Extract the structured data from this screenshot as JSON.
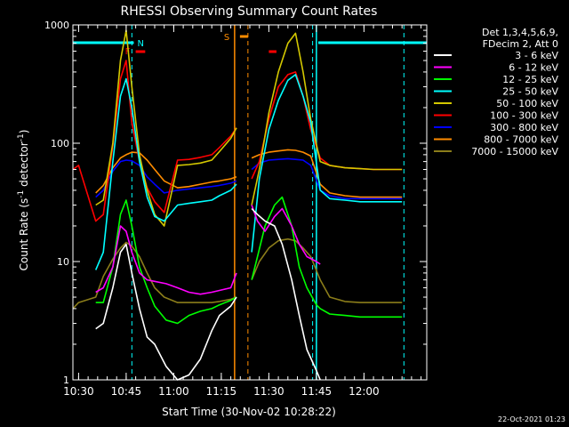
{
  "chart_data": {
    "type": "line",
    "title": "RHESSI Observing Summary Count Rates",
    "xlabel": "Start Time (30-Nov-02 10:28:22)",
    "ylabel_main": "Count Rate (s",
    "ylabel_sup1": "-1",
    "ylabel_mid": " detector",
    "ylabel_sup2": "-1",
    "ylabel_end": ")",
    "yscale": "log",
    "ylim": [
      1,
      1000
    ],
    "xlim_minutes": [
      10.47,
      12.33
    ],
    "xticks": [
      {
        "t": 10.5,
        "label": "10:30"
      },
      {
        "t": 10.75,
        "label": "10:45"
      },
      {
        "t": 11.0,
        "label": "11:00"
      },
      {
        "t": 11.25,
        "label": "11:15"
      },
      {
        "t": 11.5,
        "label": "11:30"
      },
      {
        "t": 11.75,
        "label": "11:45"
      },
      {
        "t": 12.0,
        "label": "12:00"
      }
    ],
    "yticks": [
      {
        "v": 1,
        "label": "1"
      },
      {
        "v": 10,
        "label": "10"
      },
      {
        "v": 100,
        "label": "100"
      },
      {
        "v": 1000,
        "label": "1000"
      }
    ],
    "legend_header": [
      "Det 1,3,4,5,6,9,",
      "FDecim 2, Att 0"
    ],
    "legend_position": "right",
    "footer": "22-Oct-2021 01:23",
    "flags": {
      "N": {
        "label": "N",
        "color": "#00ffff",
        "intervals": [
          [
            10.47,
            10.79
          ],
          [
            11.76,
            12.33
          ]
        ]
      },
      "S": {
        "label": "S",
        "color": "#ff8c00",
        "t": 11.355
      },
      "F": {
        "label": "F",
        "color": "#ff0000",
        "intervals": [
          [
            10.8,
            10.85
          ],
          [
            11.5,
            11.54
          ]
        ]
      },
      "night_boundaries": [
        11.77,
        11.76
      ],
      "saa_interval": [
        11.32,
        11.39
      ],
      "dashed_lines": [
        {
          "t": 10.78,
          "color": "#00ffff"
        },
        {
          "t": 11.39,
          "color": "#ff8c00"
        },
        {
          "t": 11.73,
          "color": "#00ffff"
        },
        {
          "t": 12.21,
          "color": "#00ffff"
        }
      ],
      "solid_lines": [
        {
          "t": 11.32,
          "color": "#ff8c00"
        },
        {
          "t": 11.75,
          "color": "#00ffff"
        }
      ]
    },
    "series": [
      {
        "name": "3 - 6 keV",
        "color": "#ffffff",
        "x": [
          10.59,
          10.63,
          10.68,
          10.72,
          10.75,
          10.78,
          10.82,
          10.86,
          10.9,
          10.96,
          11.02,
          11.08,
          11.14,
          11.2,
          11.24,
          11.3,
          11.33,
          11.41,
          11.44,
          11.48,
          11.53,
          11.57,
          11.62,
          11.66,
          11.7,
          11.75,
          11.77
        ],
        "y": [
          2.7,
          3.0,
          6.0,
          12.0,
          14.0,
          8.0,
          4.0,
          2.3,
          2.0,
          1.3,
          1.0,
          1.1,
          1.5,
          2.6,
          3.5,
          4.2,
          5.0,
          28,
          25,
          22,
          20,
          14,
          7.0,
          3.5,
          1.8,
          1.2,
          1.0
        ]
      },
      {
        "name": "6 - 12 keV",
        "color": "#ff00ff",
        "x": [
          10.59,
          10.63,
          10.68,
          10.72,
          10.75,
          10.78,
          10.82,
          10.86,
          10.9,
          10.96,
          11.02,
          11.08,
          11.14,
          11.2,
          11.24,
          11.3,
          11.33,
          11.41,
          11.44,
          11.48,
          11.53,
          11.57,
          11.62,
          11.66,
          11.7,
          11.75,
          11.77
        ],
        "y": [
          5.5,
          6.0,
          9.0,
          20.0,
          18.0,
          12.0,
          8.0,
          7.0,
          6.8,
          6.5,
          6.0,
          5.5,
          5.3,
          5.5,
          5.7,
          6.0,
          8.0,
          30,
          22,
          18,
          24,
          28,
          20,
          14,
          11,
          10,
          9.5
        ]
      },
      {
        "name": "12 - 25 keV",
        "color": "#00ff00",
        "x": [
          10.59,
          10.63,
          10.68,
          10.72,
          10.75,
          10.78,
          10.82,
          10.86,
          10.9,
          10.96,
          11.02,
          11.08,
          11.14,
          11.2,
          11.24,
          11.3,
          11.33,
          11.41,
          11.44,
          11.48,
          11.53,
          11.57,
          11.62,
          11.66,
          11.7,
          11.75,
          11.77,
          11.82,
          11.9,
          11.98,
          12.05,
          12.12,
          12.2
        ],
        "y": [
          4.5,
          4.5,
          9.0,
          25.0,
          33.0,
          20.0,
          9.0,
          6.0,
          4.2,
          3.2,
          3.0,
          3.5,
          3.8,
          4.0,
          4.3,
          4.7,
          5.0,
          7.0,
          11,
          20,
          30,
          35,
          20,
          9.0,
          6.0,
          4.3,
          4.0,
          3.6,
          3.5,
          3.4,
          3.4,
          3.4,
          3.4
        ]
      },
      {
        "name": "25 - 50 keV",
        "color": "#00ffff",
        "x": [
          10.59,
          10.63,
          10.68,
          10.72,
          10.75,
          10.78,
          10.82,
          10.86,
          10.9,
          10.95,
          11.02,
          11.08,
          11.14,
          11.2,
          11.24,
          11.3,
          11.33,
          11.41,
          11.45,
          11.5,
          11.55,
          11.6,
          11.64,
          11.68,
          11.72,
          11.77,
          11.82,
          11.9,
          11.98,
          12.05,
          12.12,
          12.2
        ],
        "y": [
          8.5,
          12,
          70,
          250,
          350,
          200,
          70,
          35,
          24,
          22,
          30,
          31,
          32,
          33,
          36,
          40,
          45,
          12,
          50,
          130,
          230,
          340,
          380,
          250,
          150,
          40,
          34,
          33,
          32,
          32,
          32,
          32
        ]
      },
      {
        "name": "50 - 100 keV",
        "color": "#d4c800",
        "x": [
          10.59,
          10.63,
          10.68,
          10.72,
          10.75,
          10.78,
          10.82,
          10.86,
          10.9,
          10.95,
          11.02,
          11.08,
          11.14,
          11.2,
          11.24,
          11.3,
          11.33,
          11.41,
          11.45,
          11.5,
          11.55,
          11.6,
          11.64,
          11.68,
          11.72,
          11.77,
          11.82,
          11.9,
          11.98,
          12.05,
          12.12,
          12.2
        ],
        "y": [
          30,
          33,
          100,
          500,
          900,
          300,
          80,
          40,
          25,
          20,
          65,
          66,
          68,
          72,
          85,
          110,
          135,
          30,
          60,
          180,
          400,
          700,
          850,
          400,
          160,
          70,
          65,
          62,
          61,
          60,
          60,
          60
        ]
      },
      {
        "name": "100 - 300 keV",
        "color": "#ff0000",
        "x": [
          10.47,
          10.5,
          10.59,
          10.63,
          10.68,
          10.72,
          10.75,
          10.78,
          10.82,
          10.86,
          10.9,
          10.95,
          11.02,
          11.08,
          11.14,
          11.2,
          11.24,
          11.3,
          11.33,
          11.41,
          11.45,
          11.5,
          11.55,
          11.6,
          11.64,
          11.68,
          11.72,
          11.77,
          11.82,
          11.9,
          11.98,
          12.05,
          12.12,
          12.2
        ],
        "y": [
          60,
          65,
          22,
          25,
          95,
          350,
          500,
          150,
          70,
          42,
          32,
          26,
          72,
          73,
          76,
          80,
          92,
          115,
          135,
          50,
          70,
          160,
          300,
          380,
          400,
          250,
          130,
          75,
          65,
          62,
          61,
          60,
          60,
          60
        ]
      },
      {
        "name": "300 - 800 keV",
        "color": "#0000ff",
        "x": [
          10.59,
          10.63,
          10.68,
          10.72,
          10.75,
          10.78,
          10.82,
          10.86,
          10.9,
          10.95,
          11.02,
          11.08,
          11.14,
          11.2,
          11.24,
          11.3,
          11.33,
          11.41,
          11.45,
          11.5,
          11.55,
          11.6,
          11.64,
          11.68,
          11.72,
          11.77,
          11.82,
          11.9,
          11.98,
          12.05,
          12.12,
          12.2
        ],
        "y": [
          35,
          40,
          58,
          70,
          72,
          71,
          65,
          52,
          45,
          38,
          40,
          41,
          42,
          43,
          44,
          46,
          48,
          60,
          68,
          72,
          73,
          74,
          73,
          72,
          65,
          40,
          36,
          34,
          34,
          34,
          34,
          34
        ]
      },
      {
        "name": "800 - 7000 keV",
        "color": "#ff8c00",
        "x": [
          10.59,
          10.63,
          10.68,
          10.72,
          10.75,
          10.78,
          10.82,
          10.86,
          10.9,
          10.95,
          11.02,
          11.08,
          11.14,
          11.2,
          11.24,
          11.3,
          11.33,
          11.41,
          11.45,
          11.5,
          11.55,
          11.6,
          11.64,
          11.68,
          11.72,
          11.77,
          11.82,
          11.9,
          11.98,
          12.05,
          12.12,
          12.2
        ],
        "y": [
          38,
          44,
          62,
          75,
          80,
          84,
          83,
          72,
          60,
          48,
          42,
          43,
          45,
          47,
          48,
          50,
          52,
          75,
          80,
          84,
          86,
          88,
          87,
          84,
          78,
          45,
          38,
          36,
          35,
          35,
          35,
          35
        ]
      },
      {
        "name": "7000 - 15000 keV",
        "color": "#8b7d1a",
        "x": [
          10.47,
          10.5,
          10.59,
          10.63,
          10.68,
          10.72,
          10.75,
          10.78,
          10.82,
          10.86,
          10.9,
          10.95,
          11.02,
          11.08,
          11.14,
          11.2,
          11.24,
          11.3,
          11.33,
          11.41,
          11.45,
          11.5,
          11.55,
          11.6,
          11.64,
          11.68,
          11.72,
          11.77,
          11.82,
          11.9,
          11.98,
          12.05,
          12.12,
          12.2
        ],
        "y": [
          4.0,
          4.5,
          5.0,
          7.5,
          10.5,
          13.0,
          14.5,
          13.5,
          11.0,
          8.0,
          6.0,
          5.0,
          4.5,
          4.5,
          4.5,
          4.5,
          4.6,
          4.8,
          5.0,
          7.0,
          10,
          13,
          15,
          15.5,
          15,
          13,
          11,
          7.0,
          5.0,
          4.6,
          4.5,
          4.5,
          4.5,
          4.5
        ]
      }
    ]
  }
}
